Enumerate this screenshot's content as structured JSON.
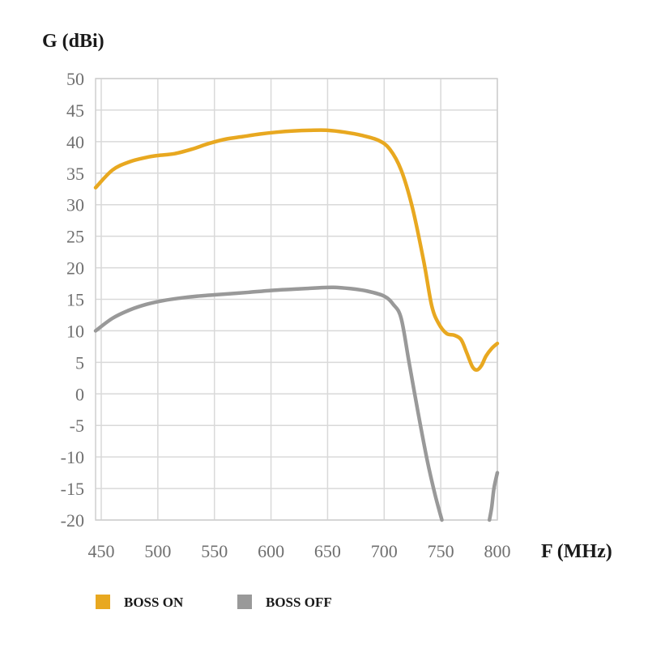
{
  "chart_data": {
    "type": "line",
    "ylabel": "G (dBi)",
    "xlabel": "F (MHz)",
    "xlim": [
      445,
      800
    ],
    "ylim": [
      -20,
      50
    ],
    "x_ticks": [
      450,
      500,
      550,
      600,
      650,
      700,
      750,
      800
    ],
    "y_ticks": [
      50,
      45,
      40,
      35,
      30,
      25,
      20,
      15,
      10,
      5,
      0,
      -5,
      -10,
      -15,
      -20
    ],
    "grid": true,
    "legend_position": "bottom-left",
    "series": [
      {
        "name": "BOSS ON",
        "color": "#E8A820",
        "points": [
          [
            445,
            32.7
          ],
          [
            460,
            35.5
          ],
          [
            475,
            36.8
          ],
          [
            490,
            37.5
          ],
          [
            500,
            37.8
          ],
          [
            515,
            38.1
          ],
          [
            530,
            38.8
          ],
          [
            545,
            39.7
          ],
          [
            560,
            40.4
          ],
          [
            575,
            40.8
          ],
          [
            590,
            41.2
          ],
          [
            605,
            41.5
          ],
          [
            620,
            41.7
          ],
          [
            635,
            41.8
          ],
          [
            650,
            41.8
          ],
          [
            665,
            41.5
          ],
          [
            680,
            41.0
          ],
          [
            695,
            40.2
          ],
          [
            705,
            38.8
          ],
          [
            715,
            35.5
          ],
          [
            725,
            29.5
          ],
          [
            735,
            21.0
          ],
          [
            742,
            14.0
          ],
          [
            748,
            11.2
          ],
          [
            755,
            9.6
          ],
          [
            762,
            9.3
          ],
          [
            768,
            8.6
          ],
          [
            773,
            6.5
          ],
          [
            778,
            4.3
          ],
          [
            782,
            3.8
          ],
          [
            786,
            4.5
          ],
          [
            790,
            6.0
          ],
          [
            795,
            7.2
          ],
          [
            800,
            8.0
          ]
        ]
      },
      {
        "name": "BOSS OFF",
        "color": "#999999",
        "points_segments": [
          [
            [
              445,
              10.0
            ],
            [
              460,
              12.0
            ],
            [
              475,
              13.3
            ],
            [
              490,
              14.2
            ],
            [
              505,
              14.8
            ],
            [
              520,
              15.2
            ],
            [
              535,
              15.5
            ],
            [
              550,
              15.7
            ],
            [
              565,
              15.9
            ],
            [
              580,
              16.1
            ],
            [
              600,
              16.4
            ],
            [
              620,
              16.6
            ],
            [
              640,
              16.8
            ],
            [
              655,
              16.9
            ],
            [
              670,
              16.7
            ],
            [
              685,
              16.3
            ],
            [
              700,
              15.5
            ],
            [
              708,
              14.2
            ],
            [
              715,
              12.0
            ],
            [
              722,
              5.0
            ],
            [
              730,
              -3.0
            ],
            [
              738,
              -10.5
            ],
            [
              745,
              -16.0
            ],
            [
              751,
              -20.0
            ]
          ],
          [
            [
              793,
              -20.0
            ],
            [
              795,
              -18.0
            ],
            [
              797,
              -15.0
            ],
            [
              800,
              -12.5
            ]
          ]
        ]
      }
    ]
  }
}
